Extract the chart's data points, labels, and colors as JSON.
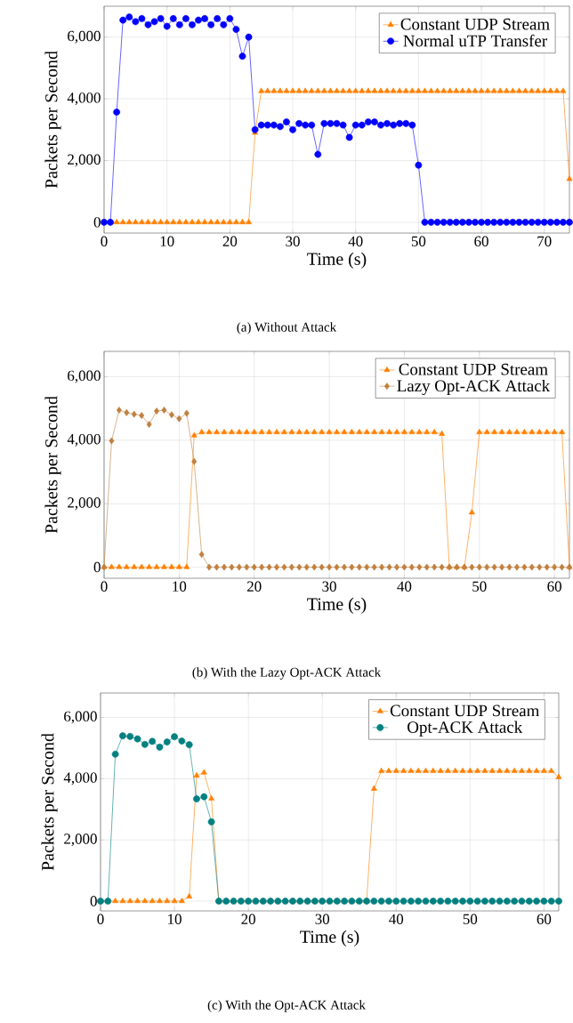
{
  "chart_data": [
    {
      "type": "line",
      "xlabel": "Time (s)",
      "ylabel": "Packets per Second",
      "annotations": [
        "(a) Without Attack"
      ],
      "xlim": [
        0,
        74
      ],
      "ylim": [
        -350,
        7000
      ],
      "xticks": [
        0,
        10,
        20,
        30,
        40,
        50,
        60,
        70
      ],
      "yticks": [
        0,
        {
          "value": 2000,
          "label": "2,000"
        },
        {
          "value": 4000,
          "label": "4,000"
        },
        {
          "value": 6000,
          "label": "6,000"
        }
      ],
      "grid": true,
      "legend": "top right",
      "x": [
        0,
        1,
        2,
        3,
        4,
        5,
        6,
        7,
        8,
        9,
        10,
        11,
        12,
        13,
        14,
        15,
        16,
        17,
        18,
        19,
        20,
        21,
        22,
        23,
        24,
        25,
        26,
        27,
        28,
        29,
        30,
        31,
        32,
        33,
        34,
        35,
        36,
        37,
        38,
        39,
        40,
        41,
        42,
        43,
        44,
        45,
        46,
        47,
        48,
        49,
        50,
        51,
        52,
        53,
        54,
        55,
        56,
        57,
        58,
        59,
        60,
        61,
        62,
        63,
        64,
        65,
        66,
        67,
        68,
        69,
        70,
        71,
        72,
        73,
        74
      ],
      "series": [
        {
          "name": "Constant UDP Stream",
          "color": "#ff8000",
          "marker": "triangle",
          "values": [
            0,
            0,
            0,
            0,
            0,
            0,
            0,
            0,
            0,
            0,
            0,
            0,
            0,
            0,
            0,
            0,
            0,
            0,
            0,
            0,
            0,
            0,
            0,
            0,
            2900,
            4250,
            4250,
            4250,
            4250,
            4250,
            4250,
            4250,
            4250,
            4250,
            4250,
            4250,
            4250,
            4250,
            4250,
            4250,
            4250,
            4250,
            4250,
            4250,
            4250,
            4250,
            4250,
            4250,
            4250,
            4250,
            4250,
            4250,
            4250,
            4250,
            4250,
            4250,
            4250,
            4250,
            4250,
            4250,
            4250,
            4250,
            4250,
            4250,
            4250,
            4250,
            4250,
            4250,
            4250,
            4250,
            4250,
            4250,
            4250,
            4250,
            1400
          ]
        },
        {
          "name": "Normal uTP Transfer",
          "color": "#0000ff",
          "marker": "circle",
          "values": [
            0,
            0,
            3570,
            6550,
            6650,
            6500,
            6600,
            6400,
            6500,
            6600,
            6350,
            6600,
            6400,
            6600,
            6400,
            6550,
            6600,
            6400,
            6600,
            6400,
            6600,
            6250,
            5380,
            6000,
            3000,
            3150,
            3150,
            3150,
            3100,
            3250,
            3000,
            3200,
            3150,
            3150,
            2200,
            3200,
            3200,
            3200,
            3150,
            2750,
            3150,
            3150,
            3250,
            3250,
            3150,
            3200,
            3150,
            3200,
            3200,
            3150,
            1850,
            0,
            0,
            0,
            0,
            0,
            0,
            0,
            0,
            0,
            0,
            0,
            0,
            0,
            0,
            0,
            0,
            0,
            0,
            0,
            0,
            0,
            0,
            0,
            0
          ]
        }
      ]
    },
    {
      "type": "line",
      "xlabel": "Time (s)",
      "ylabel": "Packets per Second",
      "annotations": [
        "(b) With the Lazy Opt-ACK Attack"
      ],
      "xlim": [
        0,
        62
      ],
      "ylim": [
        -350,
        6800
      ],
      "xticks": [
        0,
        10,
        20,
        30,
        40,
        50,
        60
      ],
      "yticks": [
        0,
        {
          "value": 2000,
          "label": "2,000"
        },
        {
          "value": 4000,
          "label": "4,000"
        },
        {
          "value": 6000,
          "label": "6,000"
        }
      ],
      "grid": true,
      "legend": "top right",
      "x": [
        0,
        1,
        2,
        3,
        4,
        5,
        6,
        7,
        8,
        9,
        10,
        11,
        12,
        13,
        14,
        15,
        16,
        17,
        18,
        19,
        20,
        21,
        22,
        23,
        24,
        25,
        26,
        27,
        28,
        29,
        30,
        31,
        32,
        33,
        34,
        35,
        36,
        37,
        38,
        39,
        40,
        41,
        42,
        43,
        44,
        45,
        46,
        47,
        48,
        49,
        50,
        51,
        52,
        53,
        54,
        55,
        56,
        57,
        58,
        59,
        60,
        61,
        62
      ],
      "series": [
        {
          "name": "Constant UDP Stream",
          "color": "#ff8000",
          "marker": "triangle",
          "values": [
            0,
            0,
            0,
            0,
            0,
            0,
            0,
            0,
            0,
            0,
            0,
            0,
            4150,
            4250,
            4250,
            4250,
            4250,
            4250,
            4250,
            4250,
            4250,
            4250,
            4250,
            4250,
            4250,
            4250,
            4250,
            4250,
            4250,
            4250,
            4250,
            4250,
            4250,
            4250,
            4250,
            4250,
            4250,
            4250,
            4250,
            4250,
            4250,
            4250,
            4250,
            4250,
            4250,
            4200,
            0,
            0,
            0,
            1720,
            4250,
            4250,
            4250,
            4250,
            4250,
            4250,
            4250,
            4250,
            4250,
            4250,
            4250,
            4250,
            0
          ]
        },
        {
          "name": "Lazy Opt-ACK Attack",
          "color": "#bf8040",
          "marker": "diamond",
          "values": [
            0,
            3980,
            4950,
            4870,
            4820,
            4780,
            4500,
            4920,
            4950,
            4800,
            4680,
            4850,
            3330,
            400,
            0,
            0,
            0,
            0,
            0,
            0,
            0,
            0,
            0,
            0,
            0,
            0,
            0,
            0,
            0,
            0,
            0,
            0,
            0,
            0,
            0,
            0,
            0,
            0,
            0,
            0,
            0,
            0,
            0,
            0,
            0,
            0,
            0,
            0,
            0,
            0,
            0,
            0,
            0,
            0,
            0,
            0,
            0,
            0,
            0,
            0,
            0,
            0,
            0
          ]
        }
      ]
    },
    {
      "type": "line",
      "xlabel": "Time (s)",
      "ylabel": "Packets per Second",
      "annotations": [
        "(c) With the Opt-ACK Attack"
      ],
      "xlim": [
        0,
        62
      ],
      "ylim": [
        -320,
        6800
      ],
      "xticks": [
        0,
        10,
        20,
        30,
        40,
        50,
        60
      ],
      "yticks": [
        0,
        {
          "value": 2000,
          "label": "2,000"
        },
        {
          "value": 4000,
          "label": "4,000"
        },
        {
          "value": 6000,
          "label": "6,000"
        }
      ],
      "grid": true,
      "legend": "top right",
      "x": [
        0,
        1,
        2,
        3,
        4,
        5,
        6,
        7,
        8,
        9,
        10,
        11,
        12,
        13,
        14,
        15,
        16,
        17,
        18,
        19,
        20,
        21,
        22,
        23,
        24,
        25,
        26,
        27,
        28,
        29,
        30,
        31,
        32,
        33,
        34,
        35,
        36,
        37,
        38,
        39,
        40,
        41,
        42,
        43,
        44,
        45,
        46,
        47,
        48,
        49,
        50,
        51,
        52,
        53,
        54,
        55,
        56,
        57,
        58,
        59,
        60,
        61,
        62
      ],
      "series": [
        {
          "name": "Constant UDP Stream",
          "color": "#ff8000",
          "marker": "triangle",
          "values": [
            0,
            0,
            0,
            0,
            0,
            0,
            0,
            0,
            0,
            0,
            0,
            0,
            150,
            4100,
            4200,
            3350,
            0,
            0,
            0,
            0,
            0,
            0,
            0,
            0,
            0,
            0,
            0,
            0,
            0,
            0,
            0,
            0,
            0,
            0,
            0,
            0,
            0,
            3670,
            4250,
            4250,
            4250,
            4250,
            4250,
            4250,
            4250,
            4250,
            4250,
            4250,
            4250,
            4250,
            4250,
            4250,
            4250,
            4250,
            4250,
            4250,
            4250,
            4250,
            4250,
            4250,
            4250,
            4250,
            4050
          ]
        },
        {
          "name": "Opt-ACK Attack",
          "color": "#008080",
          "marker": "circle",
          "values": [
            0,
            0,
            4800,
            5400,
            5380,
            5300,
            5120,
            5220,
            5030,
            5200,
            5370,
            5230,
            5110,
            3340,
            3410,
            2590,
            0,
            0,
            0,
            0,
            0,
            0,
            0,
            0,
            0,
            0,
            0,
            0,
            0,
            0,
            0,
            0,
            0,
            0,
            0,
            0,
            0,
            0,
            0,
            0,
            0,
            0,
            0,
            0,
            0,
            0,
            0,
            0,
            0,
            0,
            0,
            0,
            0,
            0,
            0,
            0,
            0,
            0,
            0,
            0,
            0,
            0,
            0
          ]
        }
      ]
    }
  ]
}
